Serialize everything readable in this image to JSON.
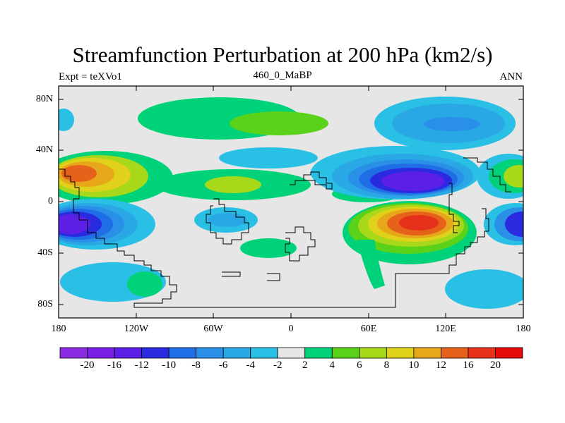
{
  "figure": {
    "title": "Streamfunction Perturbation at 200 hPa (km2/s)",
    "left_label": "Expt = teXVo1",
    "center_label": "460_0_MaBP",
    "right_label": "ANN"
  },
  "axes": {
    "lat_ticks": [
      "80N",
      "40N",
      "0",
      "40S",
      "80S"
    ],
    "lon_ticks": [
      "180",
      "120W",
      "60W",
      "0",
      "60E",
      "120E",
      "180"
    ]
  },
  "colorbar": {
    "labels": [
      "-20",
      "-16",
      "-12",
      "-10",
      "-8",
      "-6",
      "-4",
      "-2",
      "2",
      "4",
      "6",
      "8",
      "10",
      "12",
      "16",
      "20"
    ],
    "colors": [
      "#8a2be2",
      "#7a1fe6",
      "#5b1fe6",
      "#2a2ae0",
      "#1f6ee6",
      "#2a8fe6",
      "#2aa8e6",
      "#2ac0e6",
      "#e6e6e6",
      "#00d27a",
      "#5ad21a",
      "#a8d81a",
      "#e0d21a",
      "#e6a81a",
      "#e6621a",
      "#e6301a",
      "#e60a0a"
    ]
  },
  "colors": {
    "background": "#e6e6e6",
    "land_outline": "#000000"
  }
}
